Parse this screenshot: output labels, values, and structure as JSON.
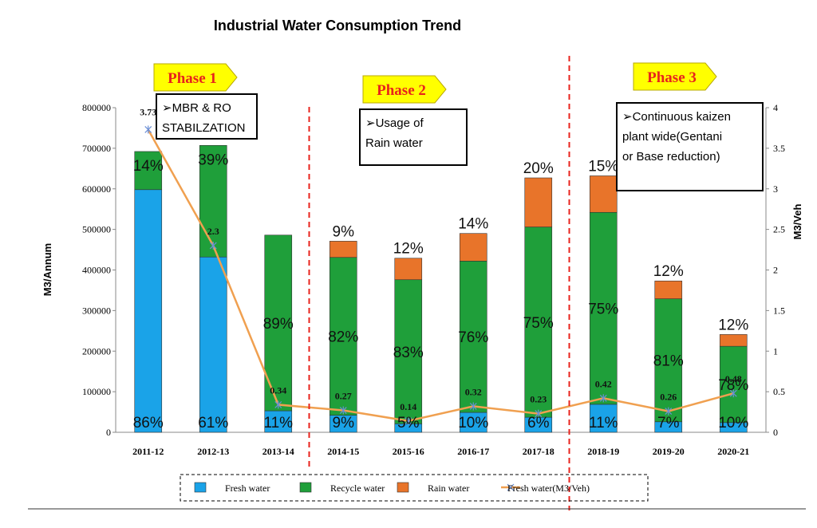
{
  "chart_data": {
    "type": "bar",
    "title": "Industrial Water Consumption Trend",
    "ylabel": "M3/Annum",
    "y2label": "M3/Veh",
    "ylim": [
      0,
      800000
    ],
    "y2lim": [
      0,
      4
    ],
    "yticks": [
      "0",
      "100000",
      "200000",
      "300000",
      "400000",
      "500000",
      "600000",
      "700000",
      "800000"
    ],
    "y2ticks": [
      "0",
      "0.5",
      "1",
      "1.5",
      "2",
      "2.5",
      "3",
      "3.5",
      "4"
    ],
    "categories": [
      "2011-12",
      "2012-13",
      "2013-14",
      "2014-15",
      "2015-16",
      "2016-17",
      "2017-18",
      "2018-19",
      "2019-20",
      "2020-21"
    ],
    "stacked": true,
    "series": [
      {
        "name": "Fresh water",
        "color": "#1aa3e8",
        "values": [
          598000,
          432000,
          53000,
          42000,
          21000,
          49000,
          37000,
          69000,
          26000,
          24000
        ],
        "labels": [
          "86%",
          "61%",
          "11%",
          "9%",
          "5%",
          "10%",
          "6%",
          "11%",
          "7%",
          "10%"
        ]
      },
      {
        "name": "Recycle water",
        "color": "#1f9f3a",
        "values": [
          94000,
          275000,
          433000,
          389000,
          355000,
          373000,
          469000,
          473000,
          303000,
          188000
        ],
        "labels": [
          "14%",
          "39%",
          "89%",
          "82%",
          "83%",
          "76%",
          "75%",
          "75%",
          "81%",
          "78%"
        ]
      },
      {
        "name": "Rain water",
        "color": "#e8742a",
        "values": [
          0,
          0,
          0,
          40000,
          53000,
          68000,
          121000,
          90000,
          44000,
          29000
        ],
        "labels": [
          "",
          "",
          "",
          "9%",
          "12%",
          "14%",
          "20%",
          "15%",
          "12%",
          "12%"
        ]
      },
      {
        "name": "Fresh water(M3/Veh)",
        "type": "line",
        "axis": "y2",
        "color": "#f0a050",
        "marker_color": "#6b8fd6",
        "values": [
          3.73,
          2.3,
          0.34,
          0.27,
          0.14,
          0.32,
          0.23,
          0.42,
          0.26,
          0.48
        ],
        "labels": [
          "3.73",
          "2.3",
          "0.34",
          "0.27",
          "0.14",
          "0.32",
          "0.23",
          "0.42",
          "0.26",
          "0.48"
        ]
      }
    ],
    "phases": [
      {
        "label": "Phase 1",
        "note_lines": [
          "➢MBR & RO",
          "STABILZATION"
        ]
      },
      {
        "label": "Phase 2",
        "note_lines": [
          "➢Usage of",
          "Rain water"
        ]
      },
      {
        "label": "Phase 3",
        "note_lines": [
          "➢Continuous kaizen",
          "plant wide(Gentani",
          "or Base reduction)"
        ]
      }
    ],
    "phase_divider_color": "#e8231c",
    "phase_label_bg": "#ffff00",
    "grid": false,
    "legend_position": "bottom"
  }
}
